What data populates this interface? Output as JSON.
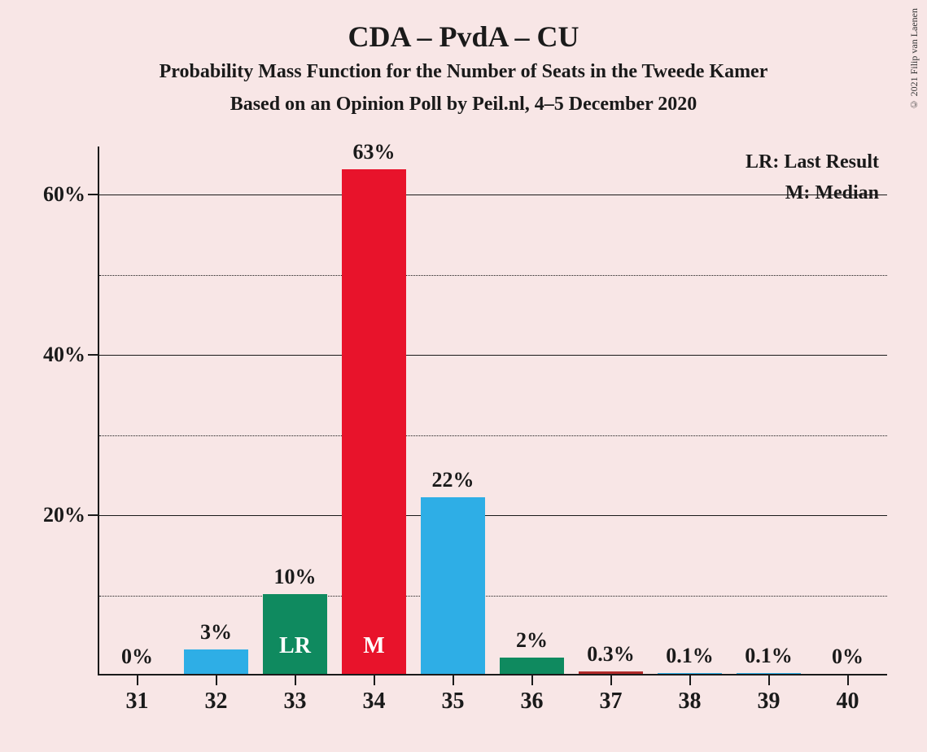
{
  "title": "CDA – PvdA – CU",
  "subtitle1": "Probability Mass Function for the Number of Seats in the Tweede Kamer",
  "subtitle2": "Based on an Opinion Poll by Peil.nl, 4–5 December 2020",
  "copyright": "© 2021 Filip van Laenen",
  "legend_lr": "LR: Last Result",
  "legend_m": "M: Median",
  "chart": {
    "type": "bar",
    "background_color": "#f8e6e6",
    "axis_color": "#1a1a1a",
    "text_color": "#1a1a1a",
    "title_fontsize": 36,
    "subtitle_fontsize": 24,
    "label_fontsize": 26,
    "x_categories": [
      "31",
      "32",
      "33",
      "34",
      "35",
      "36",
      "37",
      "38",
      "39",
      "40"
    ],
    "values": [
      0,
      3,
      10,
      63,
      22,
      2,
      0.3,
      0.1,
      0.1,
      0
    ],
    "value_labels": [
      "0%",
      "3%",
      "10%",
      "63%",
      "22%",
      "2%",
      "0.3%",
      "0.1%",
      "0.1%",
      "0%"
    ],
    "bar_colors": [
      "#2eaee6",
      "#2eaee6",
      "#0f8a5f",
      "#e8132b",
      "#2eaee6",
      "#0f8a5f",
      "#b02a2a",
      "#2eaee6",
      "#2eaee6",
      "#2eaee6"
    ],
    "bar_inner_labels": {
      "2": "LR",
      "3": "M"
    },
    "y_ticks": [
      20,
      40,
      60
    ],
    "y_tick_labels": [
      "20%",
      "40%",
      "60%"
    ],
    "y_minor_ticks": [
      10,
      30,
      50
    ],
    "ylim_max": 66,
    "bar_width_ratio": 0.82
  }
}
